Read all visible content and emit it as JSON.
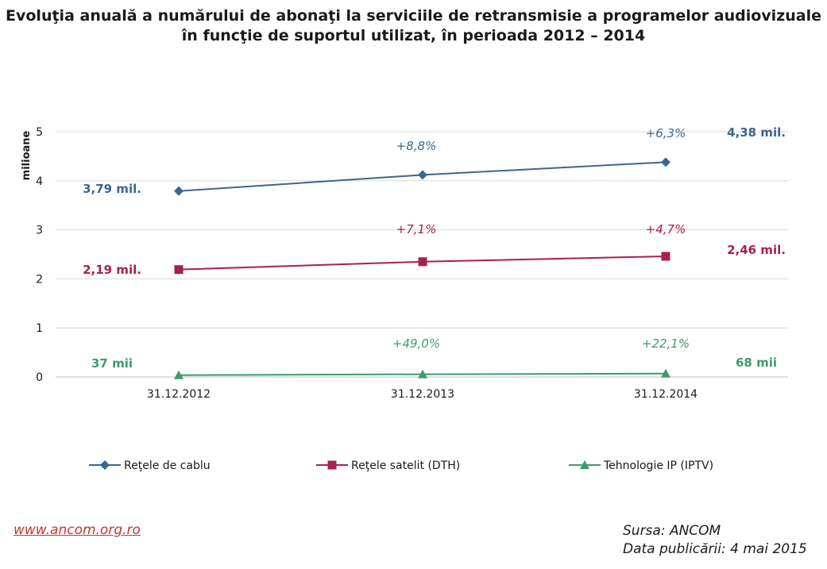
{
  "title": {
    "line1": "Evoluţia anuală a numărului de abonaţi la serviciile de retransmisie a programelor audiovizuale",
    "line2": "în funcţie de suportul utilizat, în perioada 2012 – 2014"
  },
  "chart_data": {
    "type": "line",
    "x": [
      "31.12.2012",
      "31.12.2013",
      "31.12.2014"
    ],
    "ylabel": "milioane",
    "ylim": [
      0,
      5
    ],
    "yticks": [
      "0",
      "1",
      "2",
      "3",
      "4",
      "5"
    ],
    "grid": true,
    "legend_position": "bottom",
    "series": [
      {
        "name": "Reţele de cablu",
        "color": "#3b6690",
        "marker": "diamond",
        "values": [
          3.79,
          4.12,
          4.38
        ],
        "start_label": "3,79 mil.",
        "end_label": "4,38 mil.",
        "growth_labels": [
          "+8,8%",
          "+6,3%"
        ]
      },
      {
        "name": "Reţele satelit (DTH)",
        "color": "#a8204f",
        "marker": "square",
        "values": [
          2.19,
          2.35,
          2.46
        ],
        "start_label": "2,19 mil.",
        "end_label": "2,46 mil.",
        "growth_labels": [
          "+7,1%",
          "+4,7%"
        ]
      },
      {
        "name": "Tehnologie IP (IPTV)",
        "color": "#3f9a6e",
        "marker": "triangle",
        "values": [
          0.037,
          0.055,
          0.068
        ],
        "start_label": "37 mii",
        "end_label": "68 mii",
        "growth_labels": [
          "+49,0%",
          "+22,1%"
        ]
      }
    ]
  },
  "footer": {
    "link": "www.ancom.org.ro",
    "source": "Sursa: ANCOM",
    "published": "Data publicării: 4 mai 2015"
  }
}
